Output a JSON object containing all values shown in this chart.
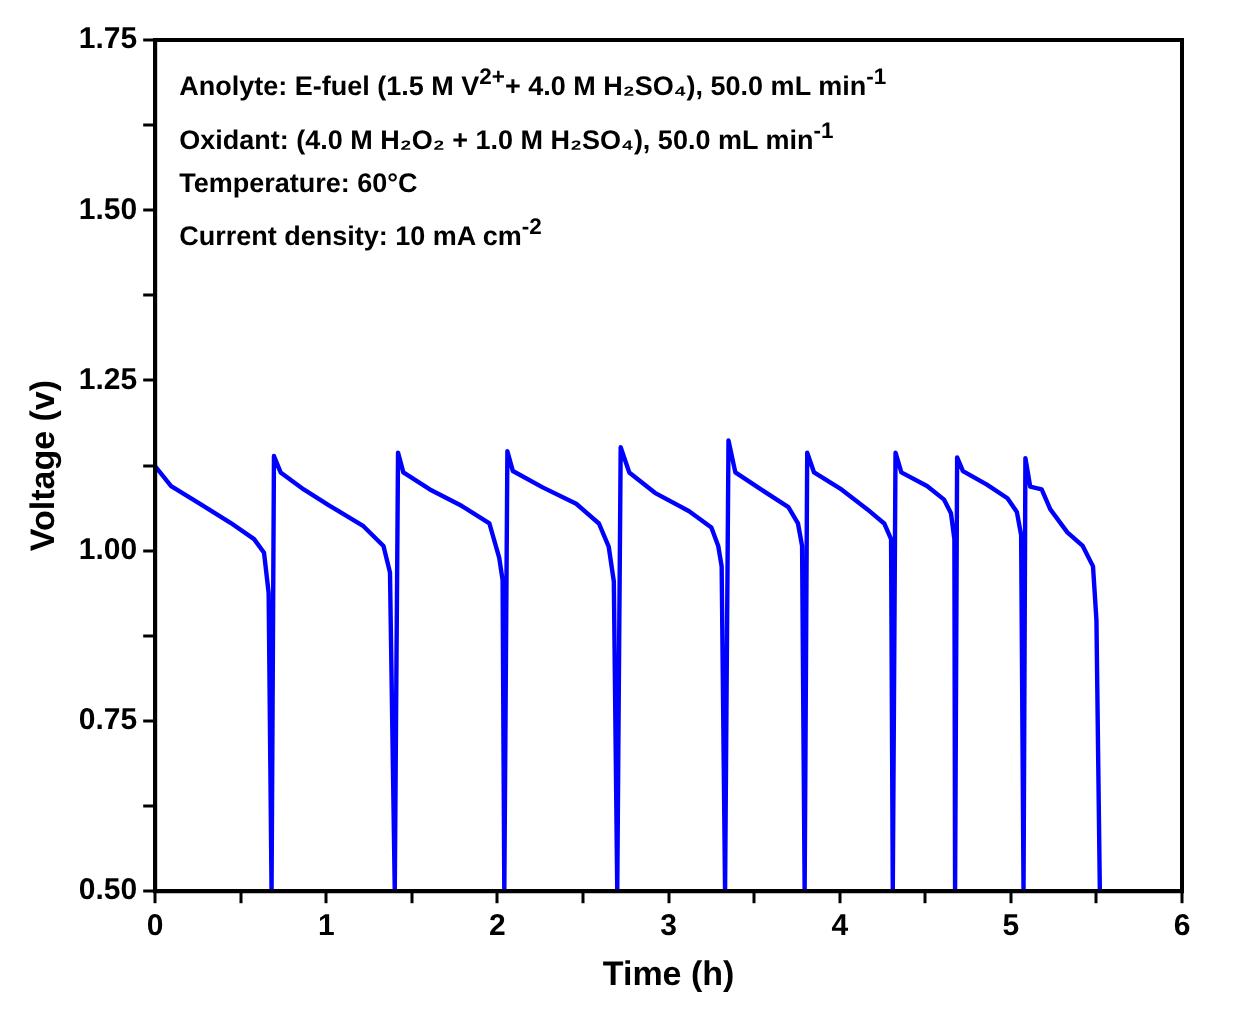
{
  "chart_data": {
    "type": "line",
    "xlabel": "Time (h)",
    "ylabel": "Voltage (v)",
    "annotations": [
      "Anolyte: E-fuel (1.5 M V$^{2+}$+ 4.0 M H₂SO₄), 50.0 mL min$^{-1}$",
      "Oxidant: (4.0 M H₂O₂ + 1.0 M H₂SO₄), 50.0 mL min$^{-1}$",
      "Temperature: 60°C",
      "Current density: 10 mA cm$^{-2}$"
    ],
    "series": [
      {
        "color": "#0000ff",
        "x": [
          0,
          0.093,
          0.248,
          0.44,
          0.578,
          0.636,
          0.663,
          0.68,
          0.694,
          0.733,
          0.868,
          1.02,
          1.217,
          1.334,
          1.372,
          1.4,
          1.419,
          1.45,
          1.605,
          1.79,
          1.953,
          2.01,
          2.03,
          2.04,
          2.058,
          2.09,
          2.264,
          2.46,
          2.593,
          2.65,
          2.68,
          2.7,
          2.72,
          2.77,
          2.92,
          3.12,
          3.25,
          3.29,
          3.31,
          3.33,
          3.35,
          3.39,
          3.54,
          3.7,
          3.756,
          3.78,
          3.795,
          3.81,
          3.85,
          4.01,
          4.16,
          4.26,
          4.3,
          4.31,
          4.326,
          4.36,
          4.51,
          4.61,
          4.65,
          4.67,
          4.674,
          4.686,
          4.72,
          4.86,
          4.98,
          5.035,
          5.06,
          5.074,
          5.085,
          5.113,
          5.18,
          5.23,
          5.33,
          5.42,
          5.48,
          5.5,
          5.52
        ],
        "values": [
          1.124,
          1.095,
          1.071,
          1.041,
          1.017,
          0.997,
          0.938,
          0.5,
          1.139,
          1.115,
          1.09,
          1.066,
          1.036,
          1.007,
          0.968,
          0.5,
          1.144,
          1.115,
          1.09,
          1.066,
          1.04,
          0.99,
          0.957,
          0.5,
          1.146,
          1.117,
          1.093,
          1.069,
          1.04,
          1.006,
          0.955,
          0.5,
          1.152,
          1.115,
          1.085,
          1.058,
          1.034,
          1.007,
          0.977,
          0.5,
          1.162,
          1.115,
          1.09,
          1.064,
          1.04,
          1.007,
          0.5,
          1.144,
          1.115,
          1.09,
          1.061,
          1.04,
          1.017,
          0.5,
          1.144,
          1.115,
          1.095,
          1.075,
          1.055,
          1.017,
          0.5,
          1.137,
          1.117,
          1.097,
          1.077,
          1.057,
          1.023,
          0.5,
          1.136,
          1.094,
          1.09,
          1.061,
          1.027,
          1.007,
          0.977,
          0.898,
          0.5
        ]
      }
    ],
    "xlim": [
      0,
      6
    ],
    "xticks": [
      0,
      {
        "value": 0.5,
        "label": null
      },
      1,
      {
        "value": 1.5,
        "label": null
      },
      2,
      {
        "value": 2.5,
        "label": null
      },
      3,
      {
        "value": 3.5,
        "label": null
      },
      4,
      {
        "value": 4.5,
        "label": null
      },
      5,
      {
        "value": 5.5,
        "label": null
      },
      6
    ],
    "ylim": [
      0.5,
      1.75
    ],
    "yticks": [
      {
        "value": 0.5,
        "label": "0.50"
      },
      {
        "value": 0.625,
        "label": null
      },
      {
        "value": 0.75,
        "label": "0.75"
      },
      {
        "value": 0.875,
        "label": null
      },
      {
        "value": 1.0,
        "label": "1.00"
      },
      {
        "value": 1.125,
        "label": null
      },
      {
        "value": 1.25,
        "label": "1.25"
      },
      {
        "value": 1.375,
        "label": null
      },
      {
        "value": 1.5,
        "label": "1.50"
      },
      {
        "value": 1.625,
        "label": null
      },
      {
        "value": 1.75,
        "label": "1.75"
      }
    ],
    "grid": false,
    "legend": false,
    "marker": "none",
    "line_style": "solid"
  }
}
